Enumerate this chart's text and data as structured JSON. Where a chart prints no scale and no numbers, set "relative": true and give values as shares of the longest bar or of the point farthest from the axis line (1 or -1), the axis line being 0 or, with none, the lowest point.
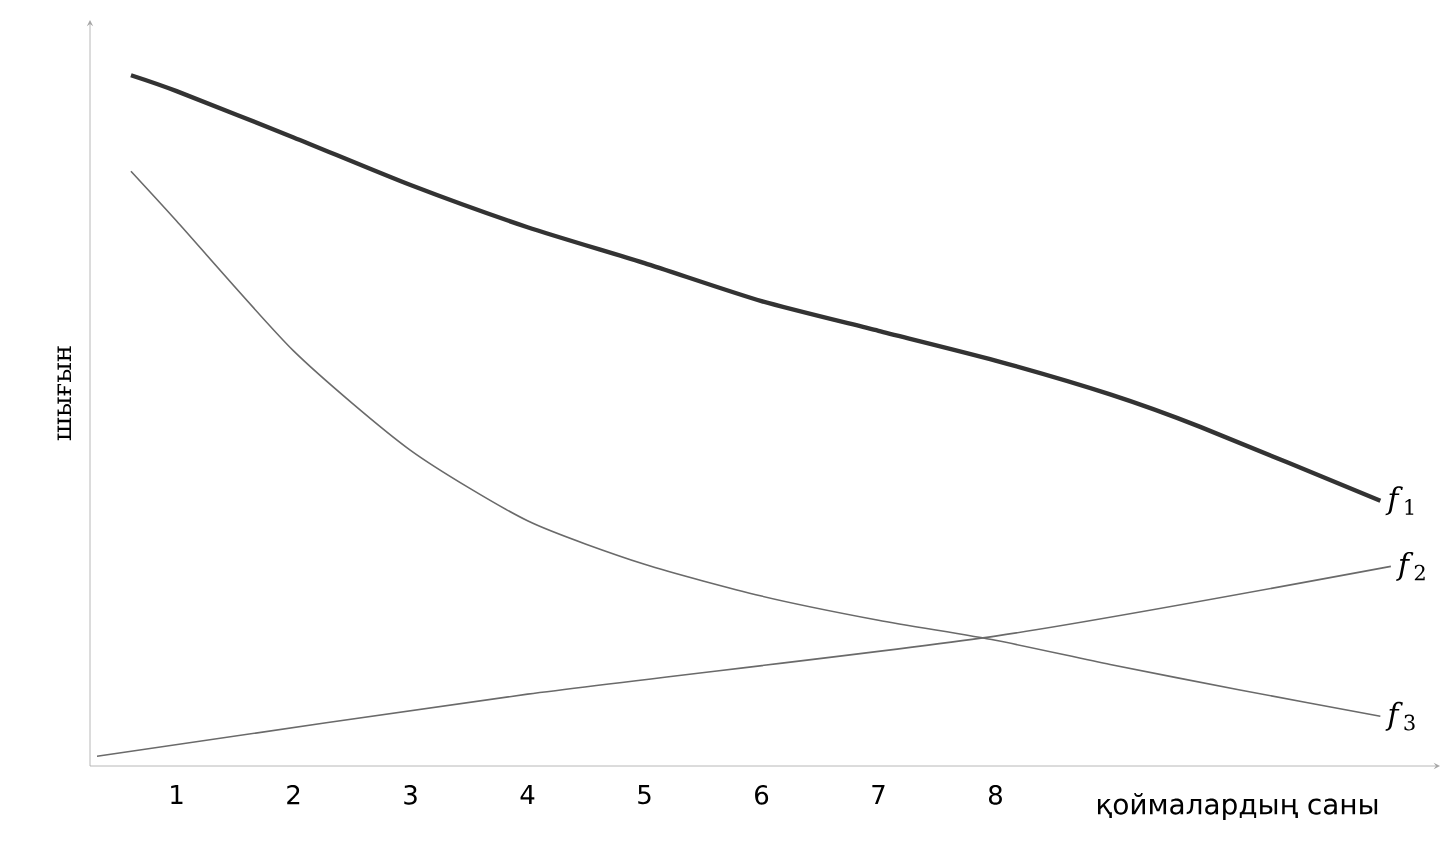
{
  "chart_data": {
    "type": "line",
    "relative": true,
    "xlabel": "қоймалардың саны",
    "ylabel": "шығын",
    "xlim": [
      0.26,
      11.8
    ],
    "xticks": [
      1,
      2,
      3,
      4,
      5,
      6,
      7,
      8
    ],
    "tick_labels": "x",
    "line_style": "solid",
    "series": [
      {
        "name": "*f*$_{1}$",
        "color": "#333333",
        "x": [
          0.61,
          1,
          2,
          3,
          4,
          5,
          6,
          7,
          8,
          8.98,
          9.75,
          11.29
        ],
        "values": [
          1.0,
          0.977,
          0.91,
          0.841,
          0.78,
          0.728,
          0.673,
          0.63,
          0.587,
          0.538,
          0.491,
          0.384
        ]
      },
      {
        "name": "*f*$_{2}$",
        "color": "#6a6a6a",
        "x": [
          0.32,
          4,
          8,
          11.38
        ],
        "values": [
          0.014,
          0.104,
          0.188,
          0.289
        ]
      },
      {
        "name": "*f*$_{3}$",
        "color": "#6a6a6a",
        "x": [
          0.61,
          1,
          2,
          3,
          4,
          5,
          6,
          7,
          8,
          8.98,
          10.09,
          11.29
        ],
        "values": [
          0.861,
          0.789,
          0.601,
          0.457,
          0.355,
          0.292,
          0.246,
          0.211,
          0.182,
          0.147,
          0.11,
          0.072
        ]
      }
    ]
  }
}
